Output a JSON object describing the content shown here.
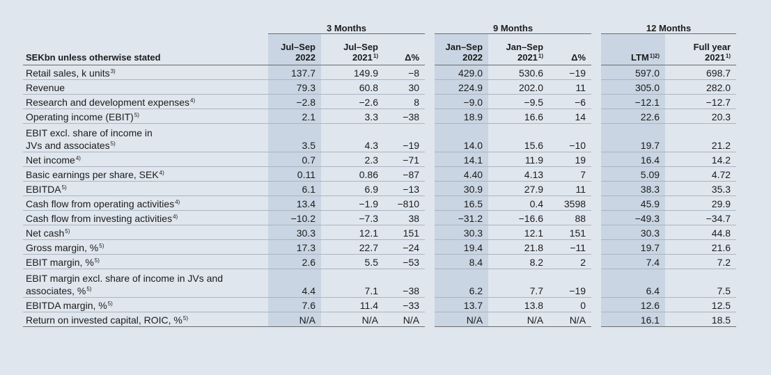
{
  "header": {
    "unit_label": "SEKbn unless otherwise stated",
    "groups": [
      "3 Months",
      "9 Months",
      "12 Months"
    ],
    "columns": [
      {
        "line1": "Jul–Sep",
        "line2": "2022",
        "note": ""
      },
      {
        "line1": "Jul–Sep",
        "line2": "2021",
        "note": "1)"
      },
      {
        "line1": "",
        "line2": "Δ%",
        "note": ""
      },
      {
        "line1": "Jan–Sep",
        "line2": "2022",
        "note": ""
      },
      {
        "line1": "Jan–Sep",
        "line2": "2021",
        "note": "1)"
      },
      {
        "line1": "",
        "line2": "Δ%",
        "note": ""
      },
      {
        "line1": "",
        "line2": "LTM",
        "note": "1)2)"
      },
      {
        "line1": "Full year",
        "line2": "2021",
        "note": "1)"
      }
    ]
  },
  "rows": [
    {
      "label": [
        "Retail sales, k units"
      ],
      "note": "3)",
      "values": [
        "137.7",
        "149.9",
        "−8",
        "429.0",
        "530.6",
        "−19",
        "597.0",
        "698.7"
      ]
    },
    {
      "label": [
        "Revenue"
      ],
      "note": "",
      "values": [
        "79.3",
        "60.8",
        "30",
        "224.9",
        "202.0",
        "11",
        "305.0",
        "282.0"
      ]
    },
    {
      "label": [
        "Research and development expenses"
      ],
      "note": "4)",
      "values": [
        "−2.8",
        "−2.6",
        "8",
        "−9.0",
        "−9.5",
        "−6",
        "−12.1",
        "−12.7"
      ]
    },
    {
      "label": [
        "Operating income (EBIT)"
      ],
      "note": "5)",
      "values": [
        "2.1",
        "3.3",
        "−38",
        "18.9",
        "16.6",
        "14",
        "22.6",
        "20.3"
      ]
    },
    {
      "label": [
        "EBIT excl. share of income in",
        "JVs and associates"
      ],
      "note": "5)",
      "values": [
        "3.5",
        "4.3",
        "−19",
        "14.0",
        "15.6",
        "−10",
        "19.7",
        "21.2"
      ]
    },
    {
      "label": [
        "Net income"
      ],
      "note": "4)",
      "values": [
        "0.7",
        "2.3",
        "−71",
        "14.1",
        "11.9",
        "19",
        "16.4",
        "14.2"
      ]
    },
    {
      "label": [
        "Basic earnings per share, SEK"
      ],
      "note": "4)",
      "values": [
        "0.11",
        "0.86",
        "−87",
        "4.40",
        "4.13",
        "7",
        "5.09",
        "4.72"
      ]
    },
    {
      "label": [
        "EBITDA"
      ],
      "note": "5)",
      "values": [
        "6.1",
        "6.9",
        "−13",
        "30.9",
        "27.9",
        "11",
        "38.3",
        "35.3"
      ]
    },
    {
      "label": [
        "Cash flow from operating activities"
      ],
      "note": "4)",
      "values": [
        "13.4",
        "−1.9",
        "−810",
        "16.5",
        "0.4",
        "3598",
        "45.9",
        "29.9"
      ]
    },
    {
      "label": [
        "Cash flow from investing activities"
      ],
      "note": "4)",
      "values": [
        "−10.2",
        "−7.3",
        "38",
        "−31.2",
        "−16.6",
        "88",
        "−49.3",
        "−34.7"
      ]
    },
    {
      "label": [
        "Net cash"
      ],
      "note": "5)",
      "values": [
        "30.3",
        "12.1",
        "151",
        "30.3",
        "12.1",
        "151",
        "30.3",
        "44.8"
      ]
    },
    {
      "label": [
        "Gross margin, %"
      ],
      "note": "5)",
      "values": [
        "17.3",
        "22.7",
        "−24",
        "19.4",
        "21.8",
        "−11",
        "19.7",
        "21.6"
      ]
    },
    {
      "label": [
        "EBIT margin, %"
      ],
      "note": "5)",
      "values": [
        "2.6",
        "5.5",
        "−53",
        "8.4",
        "8.2",
        "2",
        "7.4",
        "7.2"
      ]
    },
    {
      "label": [
        "EBIT margin excl. share of income in JVs and",
        "associates, %"
      ],
      "note": "5)",
      "values": [
        "4.4",
        "7.1",
        "−38",
        "6.2",
        "7.7",
        "−19",
        "6.4",
        "7.5"
      ]
    },
    {
      "label": [
        "EBITDA margin, %"
      ],
      "note": "5)",
      "values": [
        "7.6",
        "11.4",
        "−33",
        "13.7",
        "13.8",
        "0",
        "12.6",
        "12.5"
      ]
    },
    {
      "label": [
        "Return on invested capital, ROIC, %"
      ],
      "note": "5)",
      "values": [
        "N/A",
        "N/A",
        "N/A",
        "N/A",
        "N/A",
        "N/A",
        "16.1",
        "18.5"
      ]
    }
  ]
}
